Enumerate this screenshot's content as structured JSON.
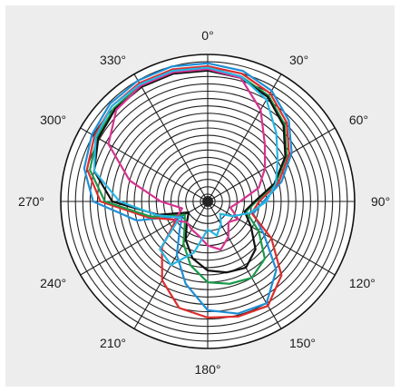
{
  "chart_data": {
    "type": "line",
    "subtype": "polar",
    "title": "",
    "angle_unit": "degrees",
    "angle_direction": "clockwise",
    "zero_location": "top",
    "grid": true,
    "ring_count": 20,
    "spoke_step_deg": 30,
    "tick_labels": [
      "0°",
      "30°",
      "60°",
      "90°",
      "120°",
      "150°",
      "180°",
      "210°",
      "240°",
      "270°",
      "300°",
      "330°"
    ],
    "tick_angles": [
      0,
      30,
      60,
      90,
      120,
      150,
      180,
      210,
      240,
      270,
      300,
      330
    ],
    "r_range": [
      0,
      1
    ],
    "series": [
      {
        "color": "#1f8fd6",
        "theta": [
          0,
          15,
          30,
          45,
          60,
          75,
          90,
          105,
          120,
          135,
          150,
          165,
          180,
          195,
          210,
          225,
          240,
          255,
          270,
          285,
          300,
          315,
          330,
          345
        ],
        "r": [
          0.94,
          0.92,
          0.87,
          0.78,
          0.66,
          0.52,
          0.38,
          0.32,
          0.44,
          0.66,
          0.8,
          0.79,
          0.74,
          0.58,
          0.42,
          0.27,
          0.2,
          0.5,
          0.78,
          0.87,
          0.91,
          0.94,
          0.95,
          0.95
        ]
      },
      {
        "color": "#dc2d2d",
        "theta": [
          0,
          15,
          30,
          45,
          60,
          75,
          90,
          105,
          120,
          135,
          150,
          165,
          180,
          195,
          210,
          225,
          240,
          255,
          270,
          285,
          300,
          315,
          330,
          345
        ],
        "r": [
          0.92,
          0.9,
          0.85,
          0.76,
          0.64,
          0.5,
          0.35,
          0.31,
          0.5,
          0.71,
          0.82,
          0.81,
          0.79,
          0.75,
          0.62,
          0.44,
          0.25,
          0.42,
          0.73,
          0.85,
          0.89,
          0.92,
          0.93,
          0.93
        ]
      },
      {
        "color": "#1a9a4a",
        "theta": [
          0,
          15,
          30,
          45,
          60,
          75,
          90,
          105,
          120,
          135,
          150,
          165,
          180,
          195,
          210,
          225,
          240,
          255,
          270,
          285,
          300,
          315,
          330,
          345
        ],
        "r": [
          0.9,
          0.88,
          0.83,
          0.74,
          0.62,
          0.48,
          0.33,
          0.27,
          0.4,
          0.55,
          0.6,
          0.58,
          0.55,
          0.45,
          0.33,
          0.22,
          0.18,
          0.4,
          0.7,
          0.83,
          0.87,
          0.9,
          0.91,
          0.91
        ]
      },
      {
        "color": "#111111",
        "theta": [
          0,
          15,
          30,
          45,
          60,
          75,
          90,
          105,
          120,
          135,
          150,
          165,
          180,
          195,
          210,
          225,
          240,
          255,
          270,
          285,
          300,
          315,
          330,
          345
        ],
        "r": [
          0.89,
          0.87,
          0.82,
          0.73,
          0.61,
          0.47,
          0.32,
          0.26,
          0.34,
          0.46,
          0.52,
          0.5,
          0.47,
          0.4,
          0.3,
          0.2,
          0.15,
          0.35,
          0.65,
          0.8,
          0.86,
          0.89,
          0.9,
          0.9
        ]
      },
      {
        "color": "#d6338f",
        "theta": [
          0,
          15,
          30,
          45,
          60,
          75,
          90,
          105,
          120,
          135,
          150,
          165,
          180,
          195,
          210,
          225,
          240,
          255,
          270,
          285,
          300,
          315,
          330,
          345
        ],
        "r": [
          0.9,
          0.87,
          0.72,
          0.55,
          0.45,
          0.36,
          0.22,
          0.16,
          0.24,
          0.2,
          0.28,
          0.34,
          0.3,
          0.24,
          0.22,
          0.2,
          0.26,
          0.18,
          0.32,
          0.55,
          0.78,
          0.88,
          0.91,
          0.91
        ]
      },
      {
        "color": "#27b7e5",
        "theta": [
          0,
          15,
          30,
          45,
          60,
          75,
          90,
          105,
          120,
          135,
          150,
          165,
          180,
          195,
          210,
          225,
          240,
          255,
          270,
          285,
          300,
          315,
          330,
          345
        ],
        "r": [
          0.91,
          0.88,
          0.8,
          0.66,
          0.55,
          0.48,
          0.4,
          0.3,
          0.2,
          0.12,
          0.18,
          0.24,
          0.19,
          0.36,
          0.5,
          0.46,
          0.22,
          0.36,
          0.6,
          0.8,
          0.88,
          0.92,
          0.92,
          0.92
        ]
      }
    ]
  }
}
